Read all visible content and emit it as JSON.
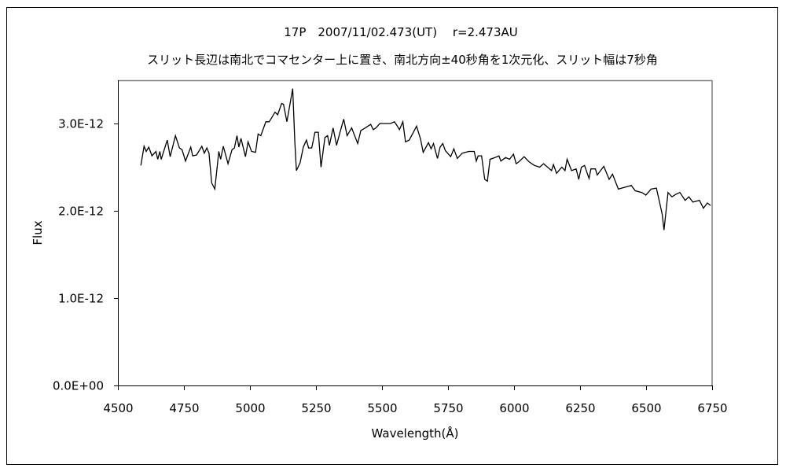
{
  "chart_data": {
    "type": "line",
    "title": "17P　2007/11/02.473(UT)　 r=2.473AU",
    "subtitle": "スリット長辺は南北でコマセンター上に置き、南北方向±40秒角を1次元化、スリット幅は7秒角",
    "xlabel": "Wavelength(Å)",
    "ylabel": "Flux",
    "xlim": [
      4500,
      6750
    ],
    "ylim": [
      0,
      3.5e-12
    ],
    "xticks": [
      "4500",
      "4750",
      "5000",
      "5250",
      "5500",
      "5750",
      "6000",
      "6250",
      "6500",
      "6750"
    ],
    "yticks": [
      "0.0E+00",
      "1.0E-12",
      "2.0E-12",
      "3.0E-12"
    ],
    "xtick_values": [
      4500,
      4750,
      5000,
      5250,
      5500,
      5750,
      6000,
      6250,
      6500,
      6750
    ],
    "ytick_values": [
      0,
      1e-12,
      2e-12,
      3e-12
    ],
    "grid": false,
    "legend": "none",
    "line_color": "#000000",
    "series": [
      {
        "x": [
          4587,
          4599,
          4607,
          4617,
          4629,
          4644,
          4651,
          4659,
          4664,
          4687,
          4698,
          4718,
          4733,
          4743,
          4756,
          4776,
          4783,
          4798,
          4818,
          4827,
          4837,
          4845,
          4855,
          4867,
          4882,
          4889,
          4899,
          4917,
          4932,
          4941,
          4951,
          4958,
          4966,
          4983,
          4993,
          5006,
          5021,
          5031,
          5041,
          5060,
          5073,
          5095,
          5105,
          5120,
          5127,
          5140,
          5162,
          5170,
          5176,
          5190,
          5202,
          5214,
          5222,
          5234,
          5246,
          5259,
          5269,
          5284,
          5294,
          5301,
          5315,
          5328,
          5341,
          5355,
          5368,
          5385,
          5408,
          5420,
          5437,
          5457,
          5467,
          5477,
          5492,
          5532,
          5547,
          5556,
          5566,
          5579,
          5589,
          5603,
          5619,
          5631,
          5646,
          5656,
          5676,
          5686,
          5695,
          5710,
          5720,
          5730,
          5740,
          5760,
          5772,
          5785,
          5804,
          5829,
          5849,
          5857,
          5864,
          5877,
          5889,
          5899,
          5909,
          5928,
          5943,
          5950,
          5968,
          5983,
          5998,
          6008,
          6018,
          6038,
          6057,
          6077,
          6097,
          6112,
          6142,
          6149,
          6161,
          6181,
          6193,
          6201,
          6218,
          6235,
          6245,
          6255,
          6267,
          6284,
          6291,
          6308,
          6315,
          6340,
          6360,
          6373,
          6395,
          6420,
          6444,
          6459,
          6484,
          6499,
          6519,
          6539,
          6551,
          6561,
          6568,
          6583,
          6598,
          6613,
          6628,
          6648,
          6662,
          6677,
          6702,
          6717,
          6732,
          6744
        ],
        "y": [
          2.52e-12,
          2.74e-12,
          2.68e-12,
          2.73e-12,
          2.63e-12,
          2.68e-12,
          2.59e-12,
          2.68e-12,
          2.59e-12,
          2.81e-12,
          2.62e-12,
          2.86e-12,
          2.72e-12,
          2.7e-12,
          2.57e-12,
          2.73e-12,
          2.63e-12,
          2.64e-12,
          2.74e-12,
          2.66e-12,
          2.72e-12,
          2.66e-12,
          2.32e-12,
          2.25e-12,
          2.68e-12,
          2.59e-12,
          2.74e-12,
          2.54e-12,
          2.7e-12,
          2.72e-12,
          2.86e-12,
          2.73e-12,
          2.83e-12,
          2.62e-12,
          2.79e-12,
          2.68e-12,
          2.67e-12,
          2.88e-12,
          2.86e-12,
          3.02e-12,
          3.02e-12,
          3.13e-12,
          3.1e-12,
          3.23e-12,
          3.22e-12,
          3.02e-12,
          3.4e-12,
          2.79e-12,
          2.46e-12,
          2.55e-12,
          2.73e-12,
          2.81e-12,
          2.72e-12,
          2.72e-12,
          2.9e-12,
          2.9e-12,
          2.5e-12,
          2.84e-12,
          2.86e-12,
          2.75e-12,
          2.95e-12,
          2.75e-12,
          2.9e-12,
          3.05e-12,
          2.86e-12,
          2.95e-12,
          2.77e-12,
          2.92e-12,
          2.95e-12,
          2.99e-12,
          2.93e-12,
          2.95e-12,
          3e-12,
          3e-12,
          3.02e-12,
          2.98e-12,
          2.93e-12,
          3.02e-12,
          2.79e-12,
          2.81e-12,
          2.9e-12,
          2.97e-12,
          2.82e-12,
          2.67e-12,
          2.78e-12,
          2.71e-12,
          2.77e-12,
          2.6e-12,
          2.73e-12,
          2.77e-12,
          2.69e-12,
          2.62e-12,
          2.71e-12,
          2.6e-12,
          2.66e-12,
          2.68e-12,
          2.68e-12,
          2.57e-12,
          2.63e-12,
          2.63e-12,
          2.36e-12,
          2.34e-12,
          2.59e-12,
          2.61e-12,
          2.63e-12,
          2.57e-12,
          2.61e-12,
          2.59e-12,
          2.65e-12,
          2.54e-12,
          2.56e-12,
          2.62e-12,
          2.56e-12,
          2.52e-12,
          2.5e-12,
          2.54e-12,
          2.46e-12,
          2.53e-12,
          2.43e-12,
          2.5e-12,
          2.46e-12,
          2.59e-12,
          2.46e-12,
          2.48e-12,
          2.36e-12,
          2.5e-12,
          2.52e-12,
          2.37e-12,
          2.48e-12,
          2.48e-12,
          2.41e-12,
          2.51e-12,
          2.36e-12,
          2.42e-12,
          2.25e-12,
          2.27e-12,
          2.29e-12,
          2.23e-12,
          2.21e-12,
          2.18e-12,
          2.25e-12,
          2.26e-12,
          2.1e-12,
          1.96e-12,
          1.78e-12,
          2.21e-12,
          2.16e-12,
          2.19e-12,
          2.21e-12,
          2.12e-12,
          2.16e-12,
          2.1e-12,
          2.12e-12,
          2.03e-12,
          2.09e-12,
          2.06e-12
        ]
      }
    ]
  }
}
